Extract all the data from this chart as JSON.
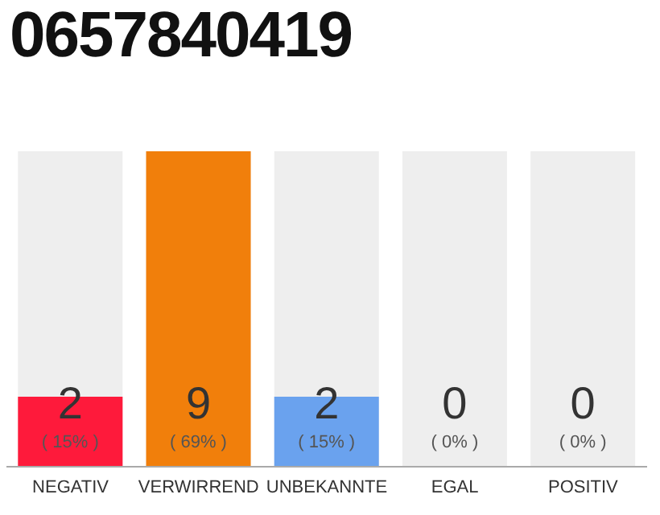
{
  "chart_data": {
    "type": "bar",
    "title": "0657840419",
    "categories": [
      "NEGATIV",
      "VERWIRREND",
      "UNBEKANNTE",
      "EGAL",
      "POSITIV"
    ],
    "values": [
      2,
      9,
      2,
      0,
      0
    ],
    "colors": [
      "#fe1a3b",
      "#f17f0b",
      "#6aa2ee",
      "#bbbbbb",
      "#bbbbbb"
    ],
    "data_labels": true,
    "annotations": [
      "( 15% )",
      "( 69% )",
      "( 15% )",
      "( 0% )",
      "( 0% )"
    ]
  }
}
